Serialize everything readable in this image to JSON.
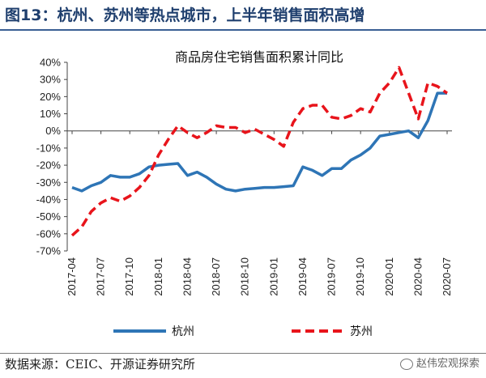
{
  "figure_title": "图13：杭州、苏州等热点城市，上半年销售面积高增",
  "source_note": "数据来源：CEIC、开源证券研究所",
  "watermark": "赵伟宏观探索",
  "chart_data": {
    "type": "line",
    "title": "商品房住宅销售面积累计同比",
    "x": [
      "2017-04",
      "2017-05",
      "2017-06",
      "2017-07",
      "2017-08",
      "2017-09",
      "2017-10",
      "2017-11",
      "2017-12",
      "2018-01",
      "2018-02",
      "2018-03",
      "2018-04",
      "2018-05",
      "2018-06",
      "2018-07",
      "2018-08",
      "2018-09",
      "2018-10",
      "2018-11",
      "2018-12",
      "2019-01",
      "2019-02",
      "2019-03",
      "2019-04",
      "2019-05",
      "2019-06",
      "2019-07",
      "2019-08",
      "2019-09",
      "2019-10",
      "2019-11",
      "2019-12",
      "2020-01",
      "2020-02",
      "2020-03",
      "2020-04",
      "2020-05",
      "2020-06",
      "2020-07"
    ],
    "x_tick_labels": [
      "2017-04",
      "2017-07",
      "2017-10",
      "2018-01",
      "2018-04",
      "2018-07",
      "2018-10",
      "2019-01",
      "2019-04",
      "2019-07",
      "2019-10",
      "2020-01",
      "2020-04",
      "2020-07"
    ],
    "series": [
      {
        "name": "杭州",
        "color": "#2e75b6",
        "style": "solid",
        "values": [
          -33,
          -35,
          -32,
          -30,
          -26,
          -27,
          -27,
          -25,
          -21,
          -20,
          -19.5,
          -19,
          -26,
          -24,
          -27,
          -31,
          -34,
          -35,
          -34,
          -33.5,
          -33,
          -33,
          -32.5,
          -32,
          -21,
          -23,
          -26,
          -22,
          -22,
          -17,
          -14,
          -10,
          -3,
          -2,
          -1,
          0,
          -4,
          6,
          22,
          22
        ]
      },
      {
        "name": "苏州",
        "color": "#e8141b",
        "style": "dashed",
        "values": [
          -61,
          -56,
          -47,
          -42,
          -39,
          -41,
          -38,
          -33,
          -26,
          -14,
          -5,
          3,
          -1,
          -4,
          -1,
          3,
          2,
          2,
          -1,
          1,
          -2,
          -5,
          -9,
          5,
          13,
          15,
          15,
          8,
          7,
          9,
          13,
          11,
          22,
          28,
          37,
          22,
          7,
          28,
          26,
          22
        ]
      }
    ],
    "ylim": [
      -70,
      40
    ],
    "yticks": [
      40,
      30,
      20,
      10,
      0,
      -10,
      -20,
      -30,
      -40,
      -50,
      -60,
      -70
    ],
    "legend_position": "bottom",
    "grid": false
  }
}
